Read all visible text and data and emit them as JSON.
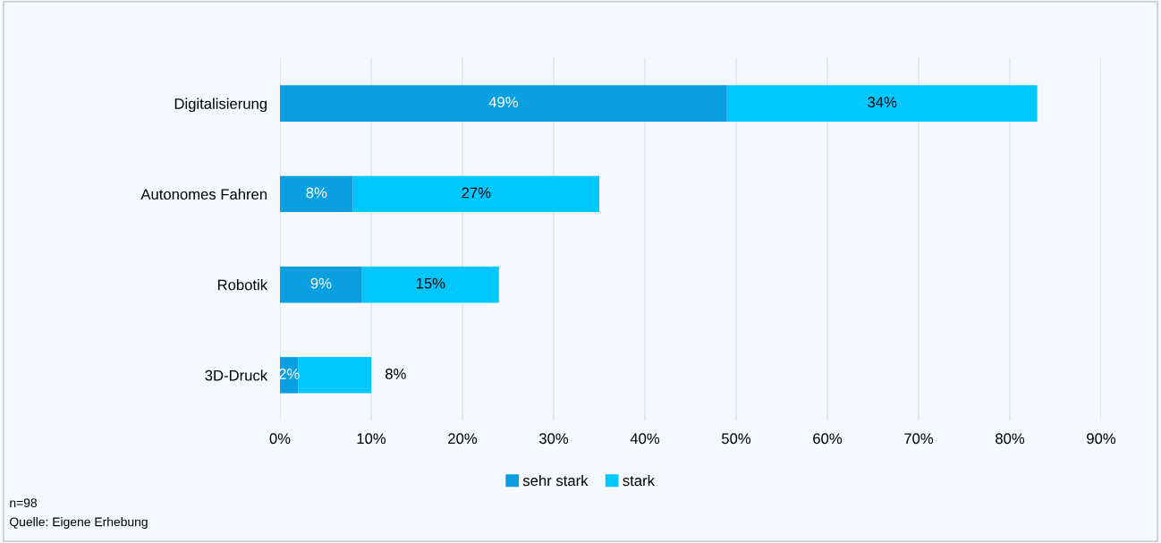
{
  "chart_data": {
    "type": "bar",
    "orientation": "horizontal",
    "stacked": true,
    "categories": [
      "Digitalisierung",
      "Autonomes Fahren",
      "Robotik",
      "3D-Druck"
    ],
    "series": [
      {
        "name": "sehr stark",
        "color": "#0a9fe0",
        "values": [
          49,
          8,
          9,
          2
        ],
        "value_labels": [
          "49%",
          "8%",
          "9%",
          "2%"
        ]
      },
      {
        "name": "stark",
        "color": "#00c8ff",
        "values": [
          34,
          27,
          15,
          8
        ],
        "value_labels": [
          "34%",
          "27%",
          "15%",
          "8%"
        ]
      }
    ],
    "xlim": [
      0,
      90
    ],
    "xticks": [
      {
        "value": 0,
        "label": "0%"
      },
      {
        "value": 10,
        "label": "10%"
      },
      {
        "value": 20,
        "label": "20%"
      },
      {
        "value": 30,
        "label": "30%"
      },
      {
        "value": 40,
        "label": "40%"
      },
      {
        "value": 50,
        "label": "50%"
      },
      {
        "value": 60,
        "label": "60%"
      },
      {
        "value": 70,
        "label": "70%"
      },
      {
        "value": 80,
        "label": "80%"
      },
      {
        "value": 90,
        "label": "90%"
      }
    ],
    "grid": "x",
    "legend": "bottom",
    "annotations": [
      "n=98",
      "Quelle: Eigene Erhebung"
    ]
  }
}
